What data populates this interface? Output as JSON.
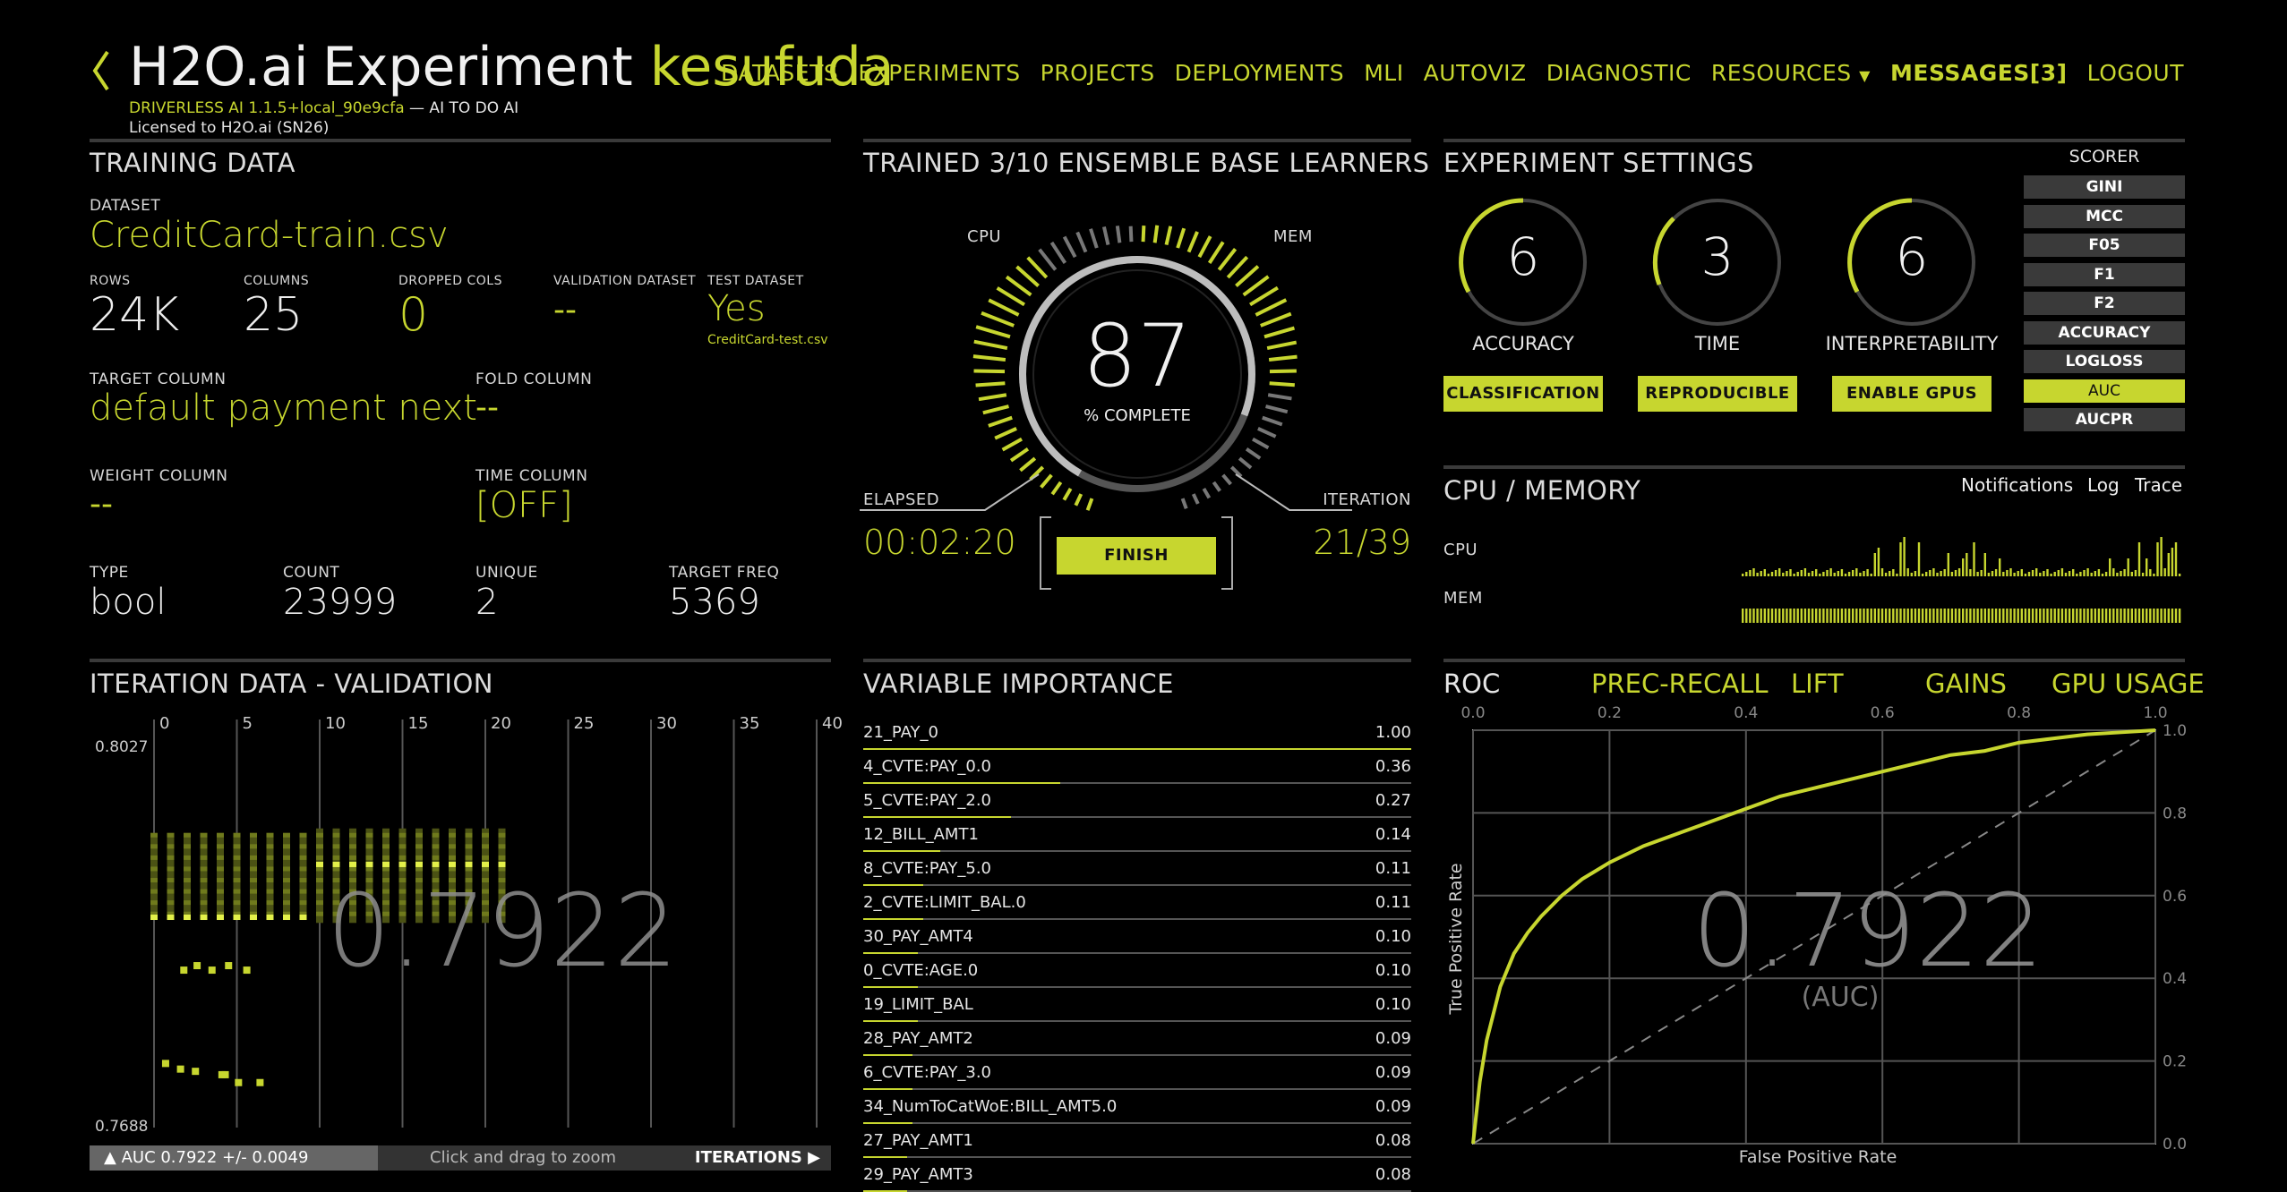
{
  "header": {
    "back_icon": "chevron-left-icon",
    "brand": "H2O.ai",
    "experiment_word": "Experiment",
    "experiment_name": "kesufuda",
    "version_line": "DRIVERLESS AI 1.1.5+local_90e9cfa",
    "version_suffix": "— AI TO DO AI",
    "license": "Licensed to H2O.ai (SN26)"
  },
  "nav": {
    "items": [
      "DATASETS",
      "EXPERIMENTS",
      "PROJECTS",
      "DEPLOYMENTS",
      "MLI",
      "AUTOVIZ",
      "DIAGNOSTIC"
    ],
    "resources": "RESOURCES",
    "messages": "MESSAGES[3]",
    "logout": "LOGOUT"
  },
  "training": {
    "title": "TRAINING DATA",
    "dataset_label": "DATASET",
    "dataset": "CreditCard-train.csv",
    "rows_label": "ROWS",
    "rows": "24K",
    "columns_label": "COLUMNS",
    "columns": "25",
    "dropped_label": "DROPPED COLS",
    "dropped": "0",
    "validation_label": "VALIDATION DATASET",
    "validation": "--",
    "test_label": "TEST DATASET",
    "test": "Yes",
    "test_file": "CreditCard-test.csv",
    "target_label": "TARGET COLUMN",
    "target": "default payment next",
    "fold_label": "FOLD COLUMN",
    "fold": "--",
    "weight_label": "WEIGHT COLUMN",
    "weight": "--",
    "time_label": "TIME COLUMN",
    "time": "[OFF]",
    "type_label": "TYPE",
    "type": "bool",
    "count_label": "COUNT",
    "count": "23999",
    "unique_label": "UNIQUE",
    "unique": "2",
    "freq_label": "TARGET FREQ",
    "freq": "5369"
  },
  "progress": {
    "title": "TRAINED 3/10 ENSEMBLE BASE LEARNERS",
    "cpu_label": "CPU",
    "mem_label": "MEM",
    "percent": "87",
    "percent_label": "% COMPLETE",
    "percent_value": 87,
    "elapsed_label": "ELAPSED",
    "elapsed": "00:02:20",
    "iteration_label": "ITERATION",
    "iteration": "21/39",
    "finish": "FINISH"
  },
  "settings": {
    "title": "EXPERIMENT SETTINGS",
    "dials": [
      {
        "value": "6",
        "label": "ACCURACY",
        "button": "CLASSIFICATION"
      },
      {
        "value": "3",
        "label": "TIME",
        "button": "REPRODUCIBLE"
      },
      {
        "value": "6",
        "label": "INTERPRETABILITY",
        "button": "ENABLE GPUS"
      }
    ],
    "scorer_label": "SCORER",
    "scorers": [
      "GINI",
      "MCC",
      "F05",
      "F1",
      "F2",
      "ACCURACY",
      "LOGLOSS",
      "AUC",
      "AUCPR"
    ],
    "selected_scorer": "AUC"
  },
  "cpu_mem": {
    "title": "CPU / MEMORY",
    "notifications": "Notifications",
    "log": "Log",
    "trace": "Trace",
    "cpu_label": "CPU",
    "mem_label": "MEM"
  },
  "iteration": {
    "title": "ITERATION DATA - VALIDATION",
    "x_ticks": [
      "0",
      "5",
      "10",
      "15",
      "20",
      "25",
      "30",
      "35",
      "40"
    ],
    "y_max": "0.8027",
    "y_min": "0.7688",
    "score": "0.7922",
    "auc_text": "AUC 0.7922 +/- 0.0049",
    "hint": "Click and drag to zoom",
    "iterations": "ITERATIONS"
  },
  "variable_importance": {
    "title": "VARIABLE IMPORTANCE",
    "rows": [
      {
        "name": "21_PAY_0",
        "value": "1.00"
      },
      {
        "name": "4_CVTE:PAY_0.0",
        "value": "0.36"
      },
      {
        "name": "5_CVTE:PAY_2.0",
        "value": "0.27"
      },
      {
        "name": "12_BILL_AMT1",
        "value": "0.14"
      },
      {
        "name": "8_CVTE:PAY_5.0",
        "value": "0.11"
      },
      {
        "name": "2_CVTE:LIMIT_BAL.0",
        "value": "0.11"
      },
      {
        "name": "30_PAY_AMT4",
        "value": "0.10"
      },
      {
        "name": "0_CVTE:AGE.0",
        "value": "0.10"
      },
      {
        "name": "19_LIMIT_BAL",
        "value": "0.10"
      },
      {
        "name": "28_PAY_AMT2",
        "value": "0.09"
      },
      {
        "name": "6_CVTE:PAY_3.0",
        "value": "0.09"
      },
      {
        "name": "34_NumToCatWoE:BILL_AMT5.0",
        "value": "0.09"
      },
      {
        "name": "27_PAY_AMT1",
        "value": "0.08"
      },
      {
        "name": "29_PAY_AMT3",
        "value": "0.08"
      }
    ]
  },
  "roc": {
    "tabs": [
      "ROC",
      "PREC-RECALL",
      "LIFT",
      "GAINS",
      "GPU USAGE"
    ],
    "x_ticks": [
      "0.0",
      "0.2",
      "0.4",
      "0.6",
      "0.8",
      "1.0"
    ],
    "y_ticks": [
      "1.0",
      "0.8",
      "0.6",
      "0.4",
      "0.2",
      "0.0"
    ],
    "score": "0.7922",
    "score_label": "(AUC)",
    "xlabel": "False Positive Rate",
    "ylabel": "True Positive Rate"
  },
  "colors": {
    "accent": "#c7d62f",
    "panel_gray": "#3a3a3a"
  },
  "chart_data": [
    {
      "type": "line",
      "title": "ROC",
      "xlabel": "False Positive Rate",
      "ylabel": "True Positive Rate",
      "xlim": [
        0,
        1
      ],
      "ylim": [
        0,
        1
      ],
      "grid": true,
      "x": [
        0,
        0.01,
        0.02,
        0.04,
        0.06,
        0.08,
        0.1,
        0.13,
        0.16,
        0.2,
        0.25,
        0.3,
        0.35,
        0.4,
        0.45,
        0.5,
        0.55,
        0.6,
        0.65,
        0.7,
        0.75,
        0.8,
        0.85,
        0.9,
        0.95,
        1.0
      ],
      "series": [
        {
          "values": [
            0,
            0.15,
            0.25,
            0.38,
            0.46,
            0.51,
            0.55,
            0.6,
            0.64,
            0.68,
            0.72,
            0.75,
            0.78,
            0.81,
            0.84,
            0.86,
            0.88,
            0.9,
            0.92,
            0.94,
            0.95,
            0.97,
            0.98,
            0.99,
            0.995,
            1.0
          ]
        },
        {
          "values": [
            0,
            0.01,
            0.02,
            0.04,
            0.06,
            0.08,
            0.1,
            0.13,
            0.16,
            0.2,
            0.25,
            0.3,
            0.35,
            0.4,
            0.45,
            0.5,
            0.55,
            0.6,
            0.65,
            0.7,
            0.75,
            0.8,
            0.85,
            0.9,
            0.95,
            1.0
          ]
        }
      ]
    },
    {
      "type": "bar",
      "title": "VARIABLE IMPORTANCE",
      "categories": [
        "21_PAY_0",
        "4_CVTE:PAY_0.0",
        "5_CVTE:PAY_2.0",
        "12_BILL_AMT1",
        "8_CVTE:PAY_5.0",
        "2_CVTE:LIMIT_BAL.0",
        "30_PAY_AMT4",
        "0_CVTE:AGE.0",
        "19_LIMIT_BAL",
        "28_PAY_AMT2",
        "6_CVTE:PAY_3.0",
        "34_NumToCatWoE:BILL_AMT5.0",
        "27_PAY_AMT1",
        "29_PAY_AMT3"
      ],
      "values": [
        1.0,
        0.36,
        0.27,
        0.14,
        0.11,
        0.11,
        0.1,
        0.1,
        0.1,
        0.09,
        0.09,
        0.09,
        0.08,
        0.08
      ]
    },
    {
      "type": "scatter",
      "title": "ITERATION DATA - VALIDATION",
      "xlim": [
        0,
        40
      ],
      "ylim": [
        0.7688,
        0.8027
      ],
      "x": [
        0,
        1,
        2,
        3,
        4,
        5,
        6,
        7,
        8,
        9,
        10,
        11,
        12,
        13,
        14,
        15,
        16,
        17,
        18,
        19,
        20,
        21
      ],
      "values": [
        0.7875,
        0.7875,
        0.7875,
        0.7875,
        0.7875,
        0.7875,
        0.7875,
        0.7875,
        0.7875,
        0.7875,
        0.7922,
        0.7922,
        0.7922,
        0.7922,
        0.7922,
        0.7922,
        0.7922,
        0.7922,
        0.7922,
        0.7922,
        0.7922,
        0.7922
      ],
      "low_scores": [
        0.7745,
        0.774,
        0.7738,
        0.7735,
        0.7735,
        0.7728,
        0.7728
      ]
    }
  ]
}
